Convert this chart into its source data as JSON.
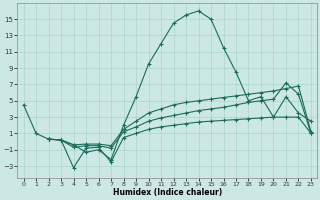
{
  "xlabel": "Humidex (Indice chaleur)",
  "ylabel": "",
  "bg_color": "#cce8e4",
  "line_color": "#1a6b5a",
  "grid_color": "#aad4cf",
  "xlim": [
    -0.5,
    23.5
  ],
  "ylim": [
    -4.5,
    17.0
  ],
  "xticks": [
    0,
    1,
    2,
    3,
    4,
    5,
    6,
    7,
    8,
    9,
    10,
    11,
    12,
    13,
    14,
    15,
    16,
    17,
    18,
    19,
    20,
    21,
    22,
    23
  ],
  "yticks": [
    -3,
    -1,
    1,
    3,
    5,
    7,
    9,
    11,
    13,
    15
  ],
  "curve1_x": [
    0,
    1,
    2,
    3,
    4,
    5,
    6,
    7,
    8,
    9,
    10,
    11,
    12,
    13,
    14,
    15,
    16,
    17,
    18,
    19,
    20,
    21,
    22,
    23
  ],
  "curve1_y": [
    4.5,
    1.0,
    0.3,
    0.2,
    -0.4,
    -1.3,
    -1.0,
    -2.2,
    2.0,
    5.5,
    9.5,
    12.0,
    14.5,
    15.5,
    16.0,
    15.0,
    11.5,
    8.5,
    5.0,
    5.5,
    3.0,
    5.5,
    3.5,
    2.5
  ],
  "curve2_x": [
    2,
    3,
    4,
    5,
    6,
    7,
    8,
    9,
    10,
    11,
    12,
    13,
    14,
    15,
    16,
    17,
    18,
    19,
    20,
    21,
    22,
    23
  ],
  "curve2_y": [
    0.3,
    0.2,
    -3.2,
    -0.8,
    -0.7,
    -2.5,
    0.5,
    1.0,
    1.5,
    1.8,
    2.0,
    2.2,
    2.4,
    2.5,
    2.6,
    2.7,
    2.8,
    2.9,
    3.0,
    3.0,
    3.0,
    1.0
  ],
  "curve3_x": [
    2,
    3,
    4,
    5,
    6,
    7,
    8,
    9,
    10,
    11,
    12,
    13,
    14,
    15,
    16,
    17,
    18,
    19,
    20,
    21,
    22,
    23
  ],
  "curve3_y": [
    0.3,
    0.2,
    -0.7,
    -0.5,
    -0.5,
    -0.8,
    1.2,
    1.8,
    2.5,
    2.9,
    3.2,
    3.5,
    3.8,
    4.0,
    4.2,
    4.5,
    4.8,
    5.0,
    5.2,
    7.2,
    5.8,
    1.0
  ],
  "curve4_x": [
    2,
    3,
    4,
    5,
    6,
    7,
    8,
    9,
    10,
    11,
    12,
    13,
    14,
    15,
    16,
    17,
    18,
    19,
    20,
    21,
    22,
    23
  ],
  "curve4_y": [
    0.3,
    0.2,
    -0.4,
    -0.3,
    -0.3,
    -0.5,
    1.5,
    2.5,
    3.5,
    4.0,
    4.5,
    4.8,
    5.0,
    5.2,
    5.4,
    5.6,
    5.8,
    6.0,
    6.2,
    6.5,
    6.8,
    1.2
  ]
}
